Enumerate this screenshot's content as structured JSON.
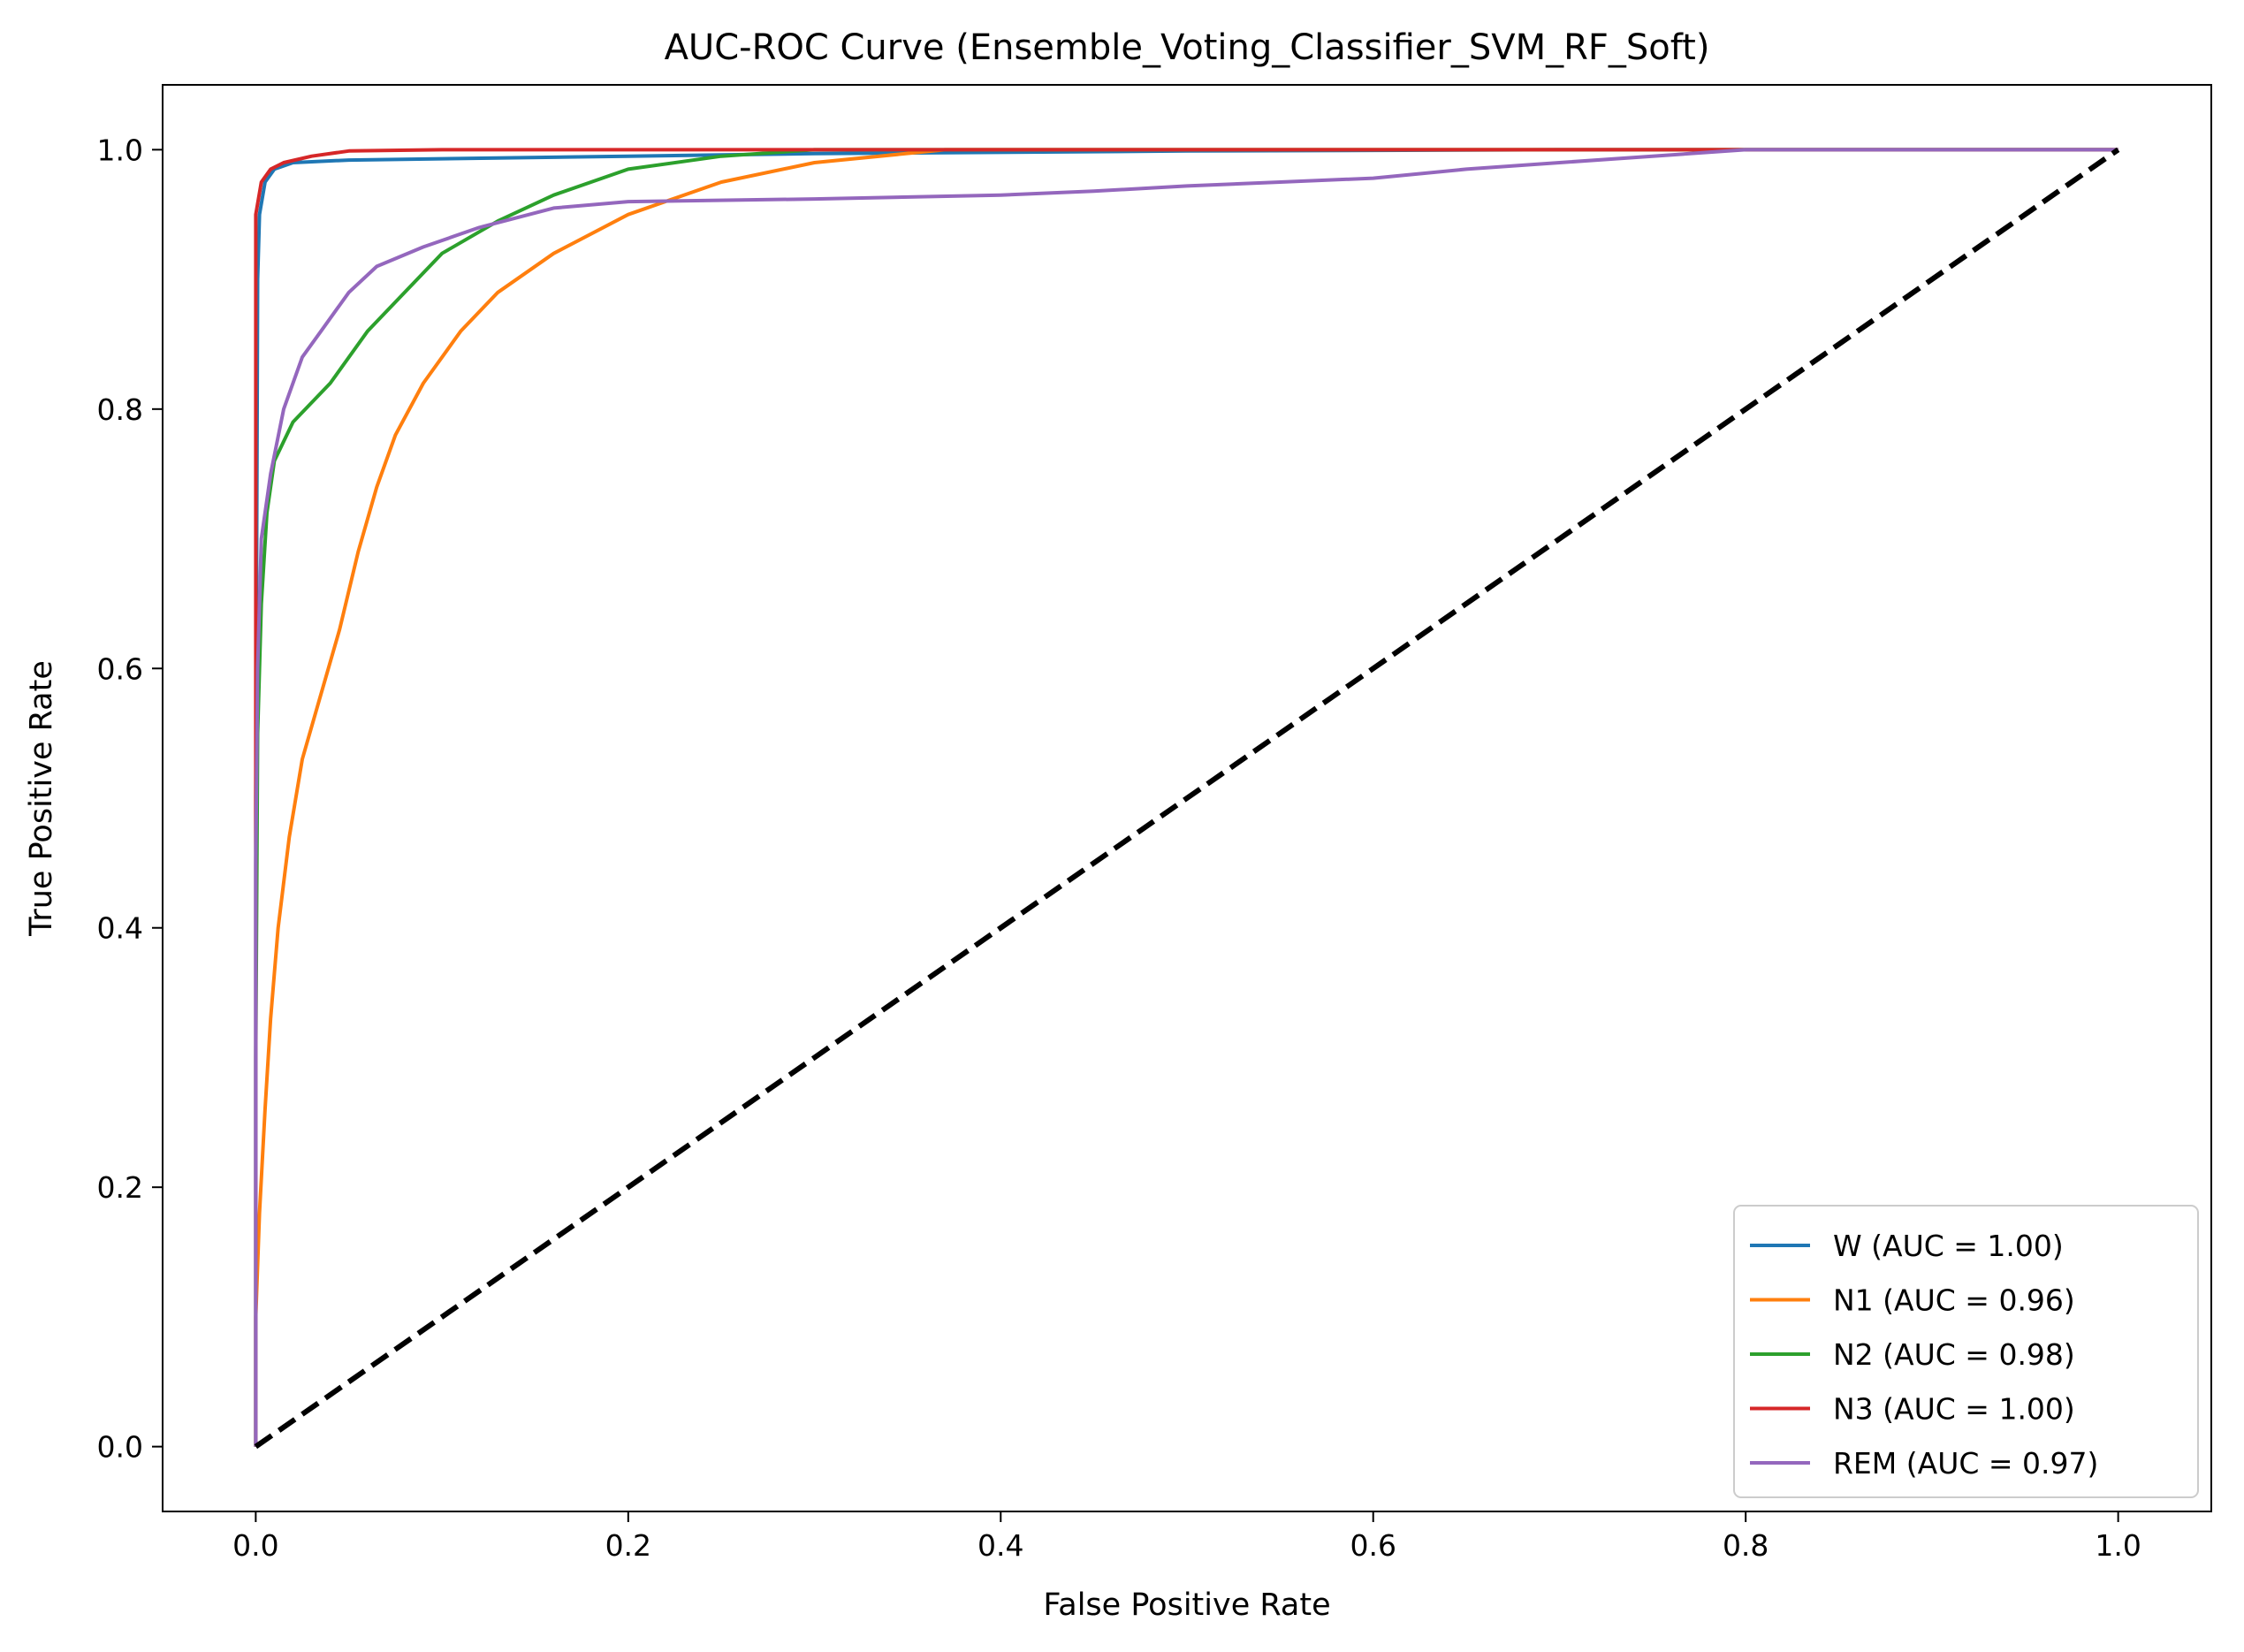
{
  "chart_data": {
    "type": "line",
    "title": "AUC-ROC Curve (Ensemble_Voting_Classifier_SVM_RF_Soft)",
    "xlabel": "False Positive Rate",
    "ylabel": "True Positive Rate",
    "xlim": [
      -0.05,
      1.05
    ],
    "ylim": [
      -0.05,
      1.05
    ],
    "x_ticks": [
      "0.0",
      "0.2",
      "0.4",
      "0.6",
      "0.8",
      "1.0"
    ],
    "y_ticks": [
      "0.0",
      "0.2",
      "0.4",
      "0.6",
      "0.8",
      "1.0"
    ],
    "grid": false,
    "legend_position": "lower-right",
    "series": [
      {
        "name": "W (AUC = 1.00)",
        "color": "#1f77b4",
        "points": [
          [
            0,
            0
          ],
          [
            0.0,
            0.5
          ],
          [
            0.001,
            0.9
          ],
          [
            0.002,
            0.95
          ],
          [
            0.005,
            0.975
          ],
          [
            0.01,
            0.985
          ],
          [
            0.02,
            0.99
          ],
          [
            0.05,
            0.992
          ],
          [
            0.1,
            0.993
          ],
          [
            0.2,
            0.995
          ],
          [
            0.3,
            0.997
          ],
          [
            0.5,
            0.999
          ],
          [
            0.7,
            1.0
          ],
          [
            1.0,
            1.0
          ]
        ]
      },
      {
        "name": "N1 (AUC = 0.96)",
        "color": "#ff7f0e",
        "points": [
          [
            0,
            0
          ],
          [
            0.0,
            0.1
          ],
          [
            0.002,
            0.18
          ],
          [
            0.005,
            0.26
          ],
          [
            0.008,
            0.33
          ],
          [
            0.012,
            0.4
          ],
          [
            0.018,
            0.47
          ],
          [
            0.025,
            0.53
          ],
          [
            0.035,
            0.58
          ],
          [
            0.045,
            0.63
          ],
          [
            0.055,
            0.69
          ],
          [
            0.065,
            0.74
          ],
          [
            0.075,
            0.78
          ],
          [
            0.09,
            0.82
          ],
          [
            0.11,
            0.86
          ],
          [
            0.13,
            0.89
          ],
          [
            0.16,
            0.92
          ],
          [
            0.2,
            0.95
          ],
          [
            0.25,
            0.975
          ],
          [
            0.3,
            0.99
          ],
          [
            0.37,
            1.0
          ],
          [
            1.0,
            1.0
          ]
        ]
      },
      {
        "name": "N2 (AUC = 0.98)",
        "color": "#2ca02c",
        "points": [
          [
            0,
            0
          ],
          [
            0.0,
            0.3
          ],
          [
            0.001,
            0.55
          ],
          [
            0.003,
            0.65
          ],
          [
            0.006,
            0.72
          ],
          [
            0.01,
            0.76
          ],
          [
            0.02,
            0.79
          ],
          [
            0.04,
            0.82
          ],
          [
            0.06,
            0.86
          ],
          [
            0.08,
            0.89
          ],
          [
            0.1,
            0.92
          ],
          [
            0.13,
            0.945
          ],
          [
            0.16,
            0.965
          ],
          [
            0.2,
            0.985
          ],
          [
            0.25,
            0.995
          ],
          [
            0.3,
            1.0
          ],
          [
            1.0,
            1.0
          ]
        ]
      },
      {
        "name": "N3 (AUC = 1.00)",
        "color": "#d62728",
        "points": [
          [
            0,
            0
          ],
          [
            0.0,
            0.65
          ],
          [
            0.0,
            0.95
          ],
          [
            0.003,
            0.975
          ],
          [
            0.008,
            0.985
          ],
          [
            0.015,
            0.99
          ],
          [
            0.03,
            0.995
          ],
          [
            0.05,
            0.999
          ],
          [
            0.1,
            1.0
          ],
          [
            1.0,
            1.0
          ]
        ]
      },
      {
        "name": "REM (AUC = 0.97)",
        "color": "#9467bd",
        "points": [
          [
            0,
            0
          ],
          [
            0.0,
            0.45
          ],
          [
            0.001,
            0.6
          ],
          [
            0.003,
            0.7
          ],
          [
            0.008,
            0.75
          ],
          [
            0.015,
            0.8
          ],
          [
            0.025,
            0.84
          ],
          [
            0.035,
            0.86
          ],
          [
            0.05,
            0.89
          ],
          [
            0.065,
            0.91
          ],
          [
            0.09,
            0.925
          ],
          [
            0.12,
            0.94
          ],
          [
            0.16,
            0.955
          ],
          [
            0.2,
            0.96
          ],
          [
            0.3,
            0.962
          ],
          [
            0.4,
            0.965
          ],
          [
            0.45,
            0.968
          ],
          [
            0.5,
            0.972
          ],
          [
            0.55,
            0.975
          ],
          [
            0.6,
            0.978
          ],
          [
            0.65,
            0.985
          ],
          [
            0.7,
            0.99
          ],
          [
            0.77,
            0.997
          ],
          [
            0.8,
            1.0
          ],
          [
            1.0,
            1.0
          ]
        ]
      }
    ],
    "reference_line": {
      "color": "#000000",
      "style": "dashed",
      "points": [
        [
          0,
          0
        ],
        [
          1,
          1
        ]
      ]
    }
  }
}
